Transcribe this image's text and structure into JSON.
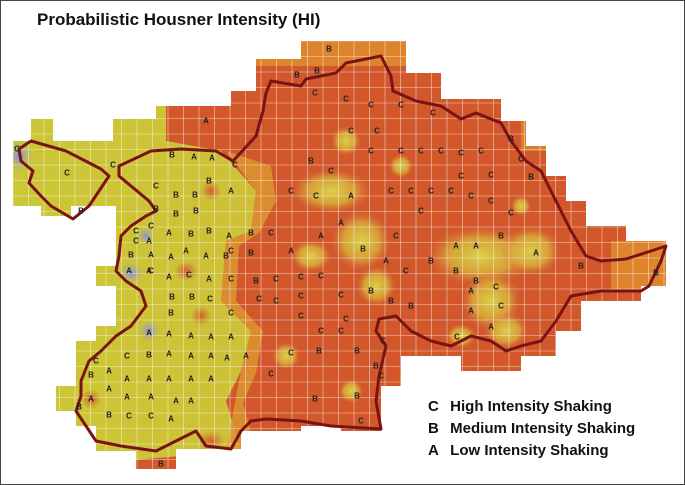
{
  "title": "Probabilistic Housner Intensity (HI)",
  "legend": [
    {
      "code": "C",
      "label": "High Intensity Shaking"
    },
    {
      "code": "B",
      "label": "Medium Intensity Shaking"
    },
    {
      "code": "A",
      "label": "Low Intensity Shaking"
    }
  ],
  "colors": {
    "high": "#d2572b",
    "medium": "#e0922e",
    "low": "#ccc836",
    "very_low": "#8e8ee0",
    "boundary": "#7a1414",
    "grid": "#ffffff"
  },
  "cell_labels": [
    "C",
    "C",
    "C",
    "C",
    "C",
    "C",
    "C",
    "C",
    "C",
    "C",
    "C",
    "C",
    "C",
    "C",
    "C",
    "C",
    "C",
    "C",
    "C",
    "C",
    "B",
    "B",
    "B",
    "B",
    "B",
    "B",
    "B",
    "B",
    "B",
    "B",
    "B",
    "B",
    "B",
    "B",
    "B",
    "B",
    "B",
    "B",
    "B",
    "B",
    "A",
    "A",
    "A",
    "A",
    "A",
    "A",
    "A",
    "A",
    "A",
    "A",
    "A",
    "A",
    "A",
    "A",
    "A",
    "A",
    "A",
    "A",
    "A",
    "A"
  ]
}
